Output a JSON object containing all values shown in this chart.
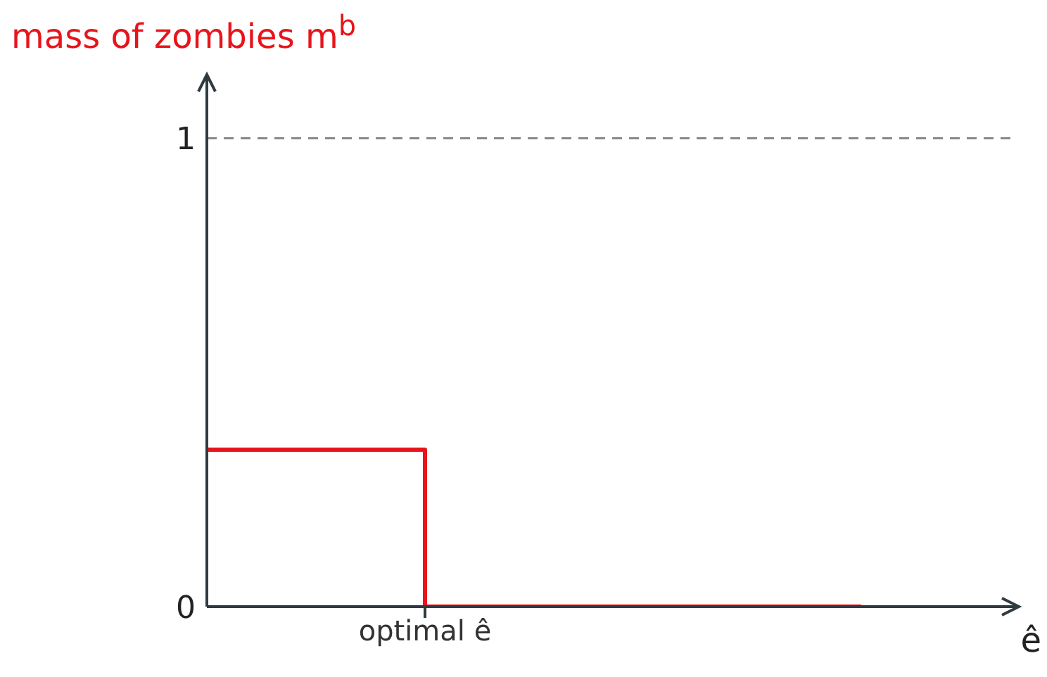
{
  "chart_data": {
    "type": "step",
    "ylabel": "mass of zombies m$^{b}$",
    "xlabel": "ê",
    "categories": [
      null,
      "optimal ê",
      null,
      null
    ],
    "series": [
      {
        "color": "#e8141b",
        "values": [
          0.335,
          0,
          0,
          0
        ]
      }
    ],
    "ylim": [
      0,
      1.13
    ],
    "yticks": [
      0,
      1
    ],
    "ref_lines": [
      {
        "axis": "y",
        "value": 1,
        "color": "#888888",
        "line_style": "dashed"
      }
    ],
    "marker": "none",
    "line_style": "solid"
  }
}
